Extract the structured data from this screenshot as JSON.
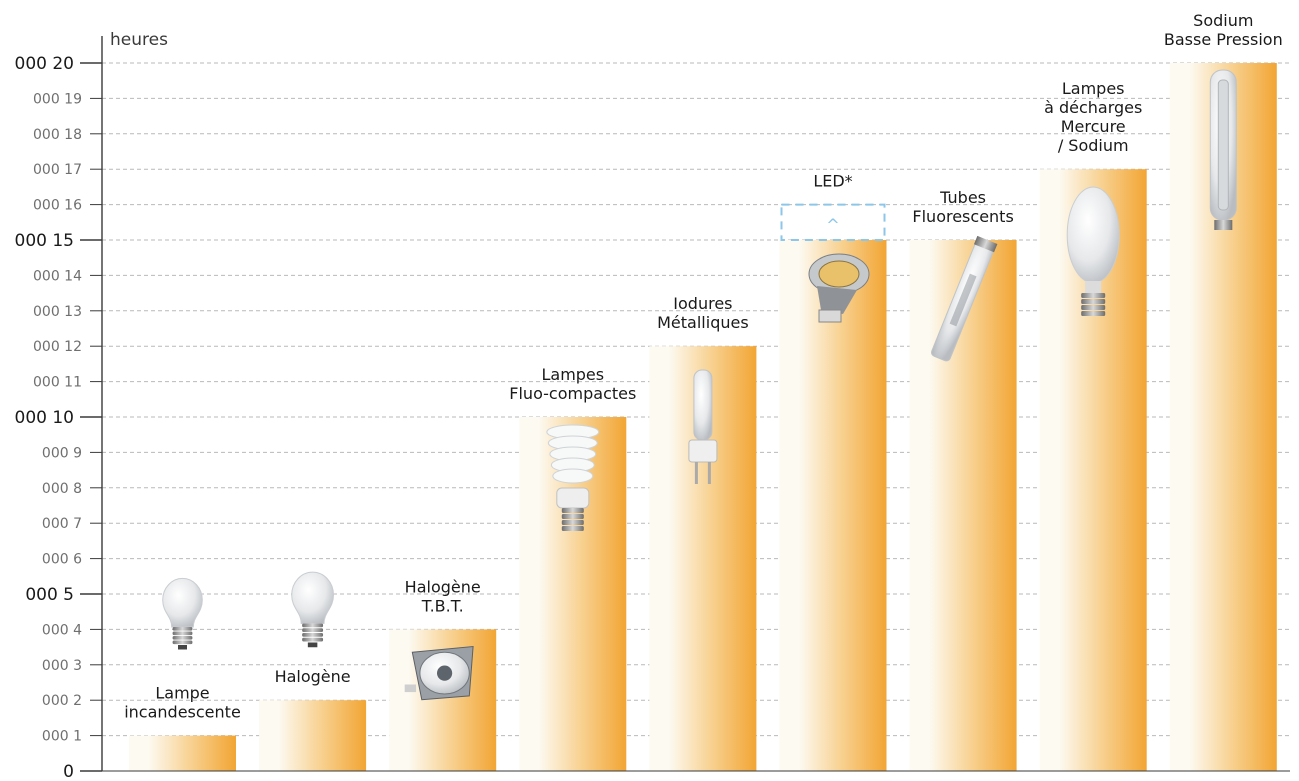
{
  "chart_data": {
    "type": "bar",
    "ylabel": "heures",
    "ylim": [
      0,
      20000
    ],
    "yticks": [
      {
        "value": 0,
        "label": "0",
        "major": true
      },
      {
        "value": 1000,
        "label": "000 1",
        "major": false
      },
      {
        "value": 2000,
        "label": "000 2",
        "major": false
      },
      {
        "value": 3000,
        "label": "000 3",
        "major": false
      },
      {
        "value": 4000,
        "label": "000 4",
        "major": false
      },
      {
        "value": 5000,
        "label": "000 5",
        "major": true
      },
      {
        "value": 6000,
        "label": "000 6",
        "major": false
      },
      {
        "value": 7000,
        "label": "000 7",
        "major": false
      },
      {
        "value": 8000,
        "label": "000 8",
        "major": false
      },
      {
        "value": 9000,
        "label": "000 9",
        "major": false
      },
      {
        "value": 10000,
        "label": "000 10",
        "major": true
      },
      {
        "value": 11000,
        "label": "000 11",
        "major": false
      },
      {
        "value": 12000,
        "label": "000 12",
        "major": false
      },
      {
        "value": 13000,
        "label": "000 13",
        "major": false
      },
      {
        "value": 14000,
        "label": "000 14",
        "major": false
      },
      {
        "value": 15000,
        "label": "000 15",
        "major": true
      },
      {
        "value": 16000,
        "label": "000 16",
        "major": false
      },
      {
        "value": 17000,
        "label": "000 17",
        "major": false
      },
      {
        "value": 18000,
        "label": "000 18",
        "major": false
      },
      {
        "value": 19000,
        "label": "000 19",
        "major": false
      },
      {
        "value": 20000,
        "label": "000 20",
        "major": true
      }
    ],
    "grid": "horizontal dashed",
    "categories": [
      {
        "label_lines": [
          "Lampe",
          "incandescente"
        ],
        "value": 1000
      },
      {
        "label_lines": [
          "Halogène"
        ],
        "value": 2000
      },
      {
        "label_lines": [
          "Halogène",
          "T.B.T."
        ],
        "value": 4000
      },
      {
        "label_lines": [
          "Lampes",
          "Fluo-compactes"
        ],
        "value": 10000
      },
      {
        "label_lines": [
          "Iodures",
          "Métalliques"
        ],
        "value": 12000
      },
      {
        "label_lines": [
          "LED*"
        ],
        "value": 15000,
        "extension_to": 16000
      },
      {
        "label_lines": [
          "Tubes",
          "Fluorescents"
        ],
        "value": 15000
      },
      {
        "label_lines": [
          "Lampes",
          "à décharges",
          "Mercure",
          "/ Sodium"
        ],
        "value": 17000
      },
      {
        "label_lines": [
          "Sodium",
          "Basse Pression"
        ],
        "value": 20000
      }
    ],
    "extension_marker": "^",
    "colors": {
      "bar_light": "#fdfaf2",
      "bar_mid": "#f8d497",
      "bar_dark": "#f2a533",
      "extension": "#8cc6e8",
      "grid": "#b9b9b9",
      "axis": "#3a3a3a"
    },
    "bulb_icons": [
      "incandescent-bulb-icon",
      "halogen-bulb-icon",
      "halogen-tbt-bulb-icon",
      "compact-fluorescent-bulb-icon",
      "metal-halide-bulb-icon",
      "led-spot-bulb-icon",
      "fluorescent-tube-icon",
      "mercury-sodium-bulb-icon",
      "low-pressure-sodium-bulb-icon"
    ]
  }
}
